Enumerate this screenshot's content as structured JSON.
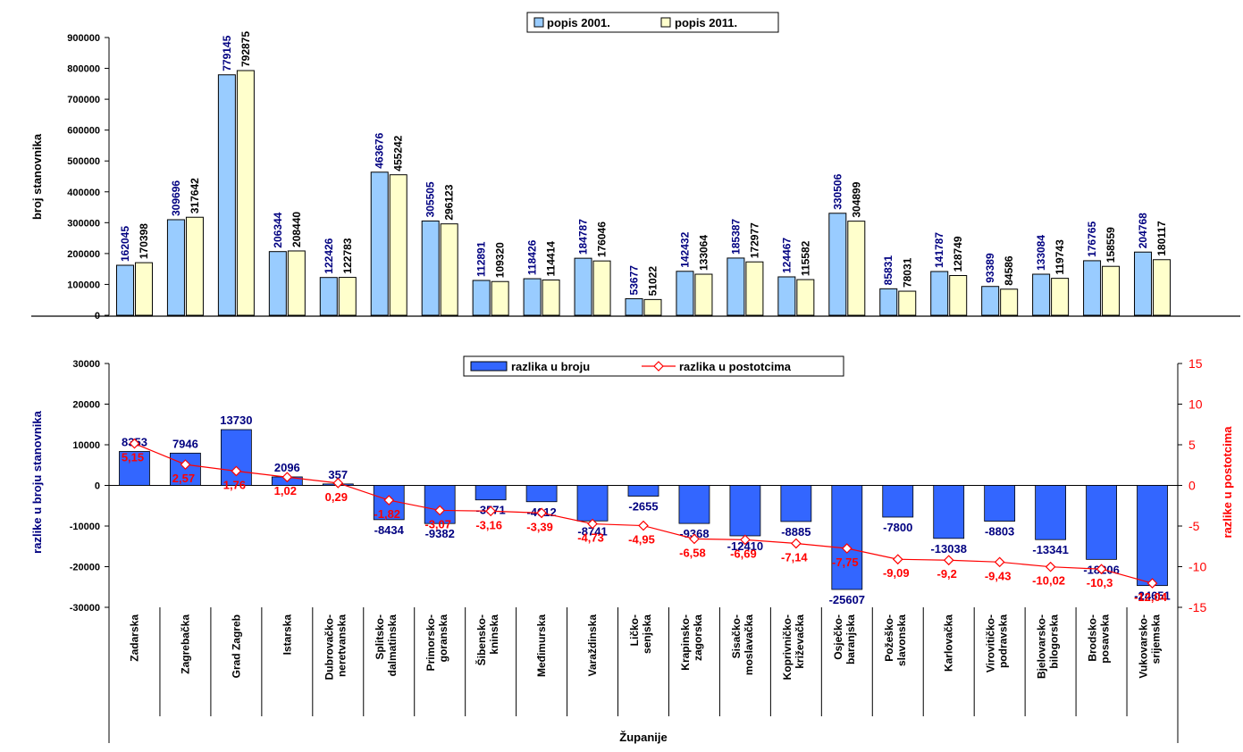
{
  "chart_data": [
    {
      "type": "bar",
      "ylabel": "broj stanovnika",
      "ylim": [
        0,
        900000
      ],
      "yticks": [
        "0",
        "100000",
        "200000",
        "300000",
        "400000",
        "500000",
        "600000",
        "700000",
        "800000",
        "900000"
      ],
      "grid": false,
      "legend_position": "top-center",
      "series": [
        {
          "name": "popis 2001.",
          "color": "#99ccff",
          "values": [
            162045,
            309696,
            779145,
            206344,
            122426,
            463676,
            305505,
            112891,
            118426,
            184787,
            53677,
            142432,
            185387,
            124467,
            330506,
            85831,
            141787,
            93389,
            133084,
            176765,
            204768
          ]
        },
        {
          "name": "popis 2011.",
          "color": "#ffffcc",
          "values": [
            170398,
            317642,
            792875,
            208440,
            122783,
            455242,
            296123,
            109320,
            114414,
            176046,
            51022,
            133064,
            172977,
            115582,
            304899,
            78031,
            128749,
            84586,
            119743,
            158559,
            180117
          ]
        }
      ]
    },
    {
      "type": "bar",
      "xlabel": "Županije",
      "ylabel": "razlike u broju stanovnika",
      "y2label": "razlike u postotcima",
      "ylim": [
        -30000,
        30000
      ],
      "y2lim": [
        -15,
        15
      ],
      "yticks": [
        "-30000",
        "-20000",
        "-10000",
        "0",
        "10000",
        "20000",
        "30000"
      ],
      "y2ticks": [
        "-15",
        "-10",
        "-5",
        "0",
        "5",
        "10",
        "15"
      ],
      "grid": false,
      "legend_position": "top-center",
      "categories": [
        "Zadarska",
        "Zagrebačka",
        "Grad Zagreb",
        "Istarska",
        "Dubrovačko-neretvanska",
        "Splitsko-dalmatinska",
        "Primorsko-goranska",
        "Šibensko-kninska",
        "Međimurska",
        "Varaždinska",
        "Ličko-senjska",
        "Krapinsko-zagorska",
        "Sisačko-moslavačka",
        "Koprivničko-križevačka",
        "Osječko-baranjska",
        "Požeško-slavonska",
        "Karlovačka",
        "Virovitičko-podravska",
        "Bjelovarsko-bilogorska",
        "Brodsko-posavska",
        "Vukovarsko-srijemska"
      ],
      "series": [
        {
          "name": "razlika u broju",
          "kind": "bar",
          "color": "#3366ff",
          "label_color": "#000080",
          "values": [
            8353,
            7946,
            13730,
            2096,
            357,
            -8434,
            -9382,
            -3571,
            -4012,
            -8741,
            -2655,
            -9368,
            -12410,
            -8885,
            -25607,
            -7800,
            -13038,
            -8803,
            -13341,
            -18206,
            -24651
          ]
        },
        {
          "name": "razlika u postotcima",
          "kind": "line",
          "axis": "right",
          "color": "#ff0000",
          "values": [
            5.15,
            2.57,
            1.76,
            1.02,
            0.29,
            -1.82,
            -3.07,
            -3.16,
            -3.39,
            -4.73,
            -4.95,
            -6.58,
            -6.69,
            -7.14,
            -7.75,
            -9.09,
            -9.2,
            -9.43,
            -10.02,
            -10.3,
            -12.04
          ],
          "labels": [
            "5,15",
            "2,57",
            "1,76",
            "1,02",
            "0,29",
            "-1,82",
            "-3,07",
            "-3,16",
            "-3,39",
            "-4,73",
            "-4,95",
            "-6,58",
            "-6,69",
            "-7,14",
            "-7,75",
            "-9,09",
            "-9,2",
            "-9,43",
            "-10,02",
            "-10,3",
            "-12,04"
          ]
        }
      ]
    }
  ]
}
